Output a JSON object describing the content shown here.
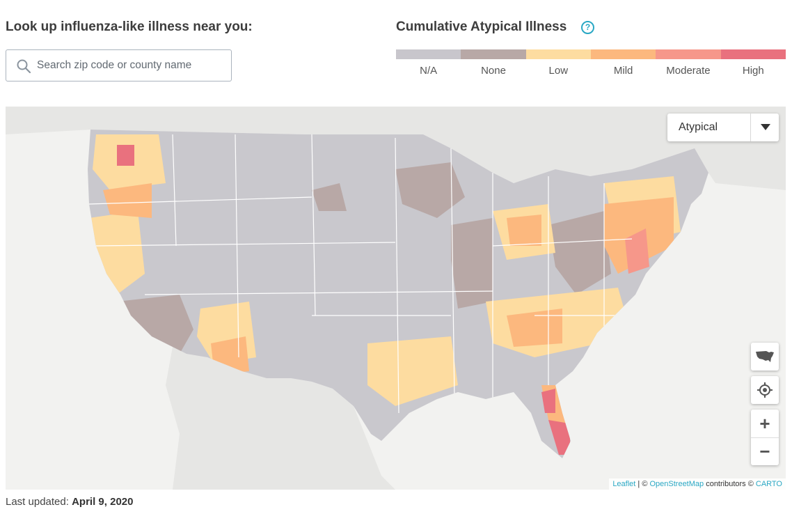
{
  "lookup": {
    "heading": "Look up influenza-like illness near you:",
    "search_placeholder": "Search zip code or county name"
  },
  "legend": {
    "title": "Cumulative Atypical Illness",
    "items": [
      {
        "label": "N/A",
        "color": "#c8c6cc"
      },
      {
        "label": "None",
        "color": "#b8a8a6"
      },
      {
        "label": "Low",
        "color": "#fddca0"
      },
      {
        "label": "Mild",
        "color": "#fcb87e"
      },
      {
        "label": "Moderate",
        "color": "#f6978a"
      },
      {
        "label": "High",
        "color": "#e9717e"
      }
    ]
  },
  "map": {
    "metric_select": "Atypical",
    "base_colors": {
      "land": "#c9c8cd",
      "water": "#f2f2f0",
      "neighbor": "#e6e6e4",
      "border": "#ffffff"
    },
    "controls": {
      "us_view_icon": "us-map-icon",
      "locate_icon": "crosshair-icon",
      "zoom_in": "+",
      "zoom_out": "−"
    },
    "attribution": {
      "leaflet": "Leaflet",
      "sep": " | © ",
      "osm": "OpenStreetMap",
      "contrib": " contributors © ",
      "carto": "CARTO"
    }
  },
  "footer": {
    "last_updated_label": "Last updated:",
    "last_updated_value": "April 9, 2020"
  }
}
